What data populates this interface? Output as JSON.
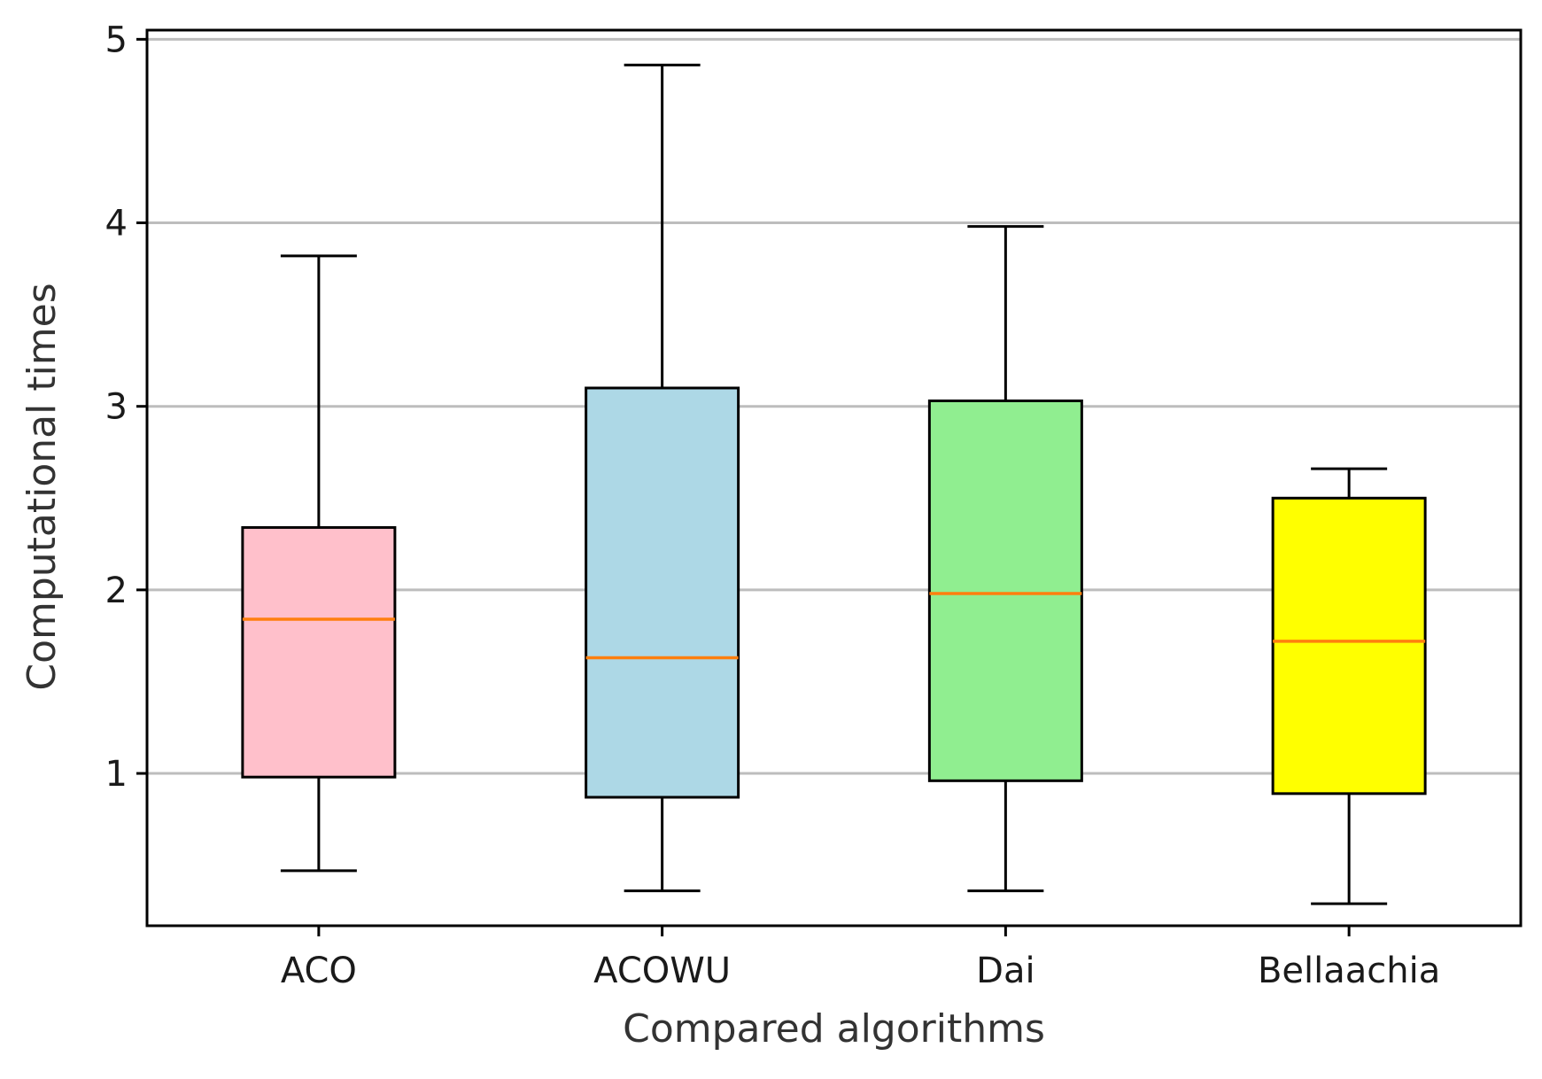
{
  "chart_data": {
    "type": "box",
    "title": "",
    "xlabel": "Compared algorithms",
    "ylabel": "Computational times",
    "ylim": [
      0.17,
      5.05
    ],
    "yticks": [
      1,
      2,
      3,
      4,
      5
    ],
    "ytick_labels": [
      "1",
      "2",
      "3",
      "4",
      "5"
    ],
    "grid": "horizontal",
    "median_color": "#ff7f0e",
    "categories": [
      "ACO",
      "ACOWU",
      "Dai",
      "Bellaachia"
    ],
    "boxes": [
      {
        "name": "ACO",
        "whisker_low": 0.47,
        "q1": 0.98,
        "median": 1.84,
        "q3": 2.34,
        "whisker_high": 3.82,
        "color": "#ffc0cb"
      },
      {
        "name": "ACOWU",
        "whisker_low": 0.36,
        "q1": 0.87,
        "median": 1.63,
        "q3": 3.1,
        "whisker_high": 4.86,
        "color": "#add8e6"
      },
      {
        "name": "Dai",
        "whisker_low": 0.36,
        "q1": 0.96,
        "median": 1.98,
        "q3": 3.03,
        "whisker_high": 3.98,
        "color": "#90ee90"
      },
      {
        "name": "Bellaachia",
        "whisker_low": 0.29,
        "q1": 0.89,
        "median": 1.72,
        "q3": 2.5,
        "whisker_high": 2.66,
        "color": "#ffff00"
      }
    ]
  }
}
